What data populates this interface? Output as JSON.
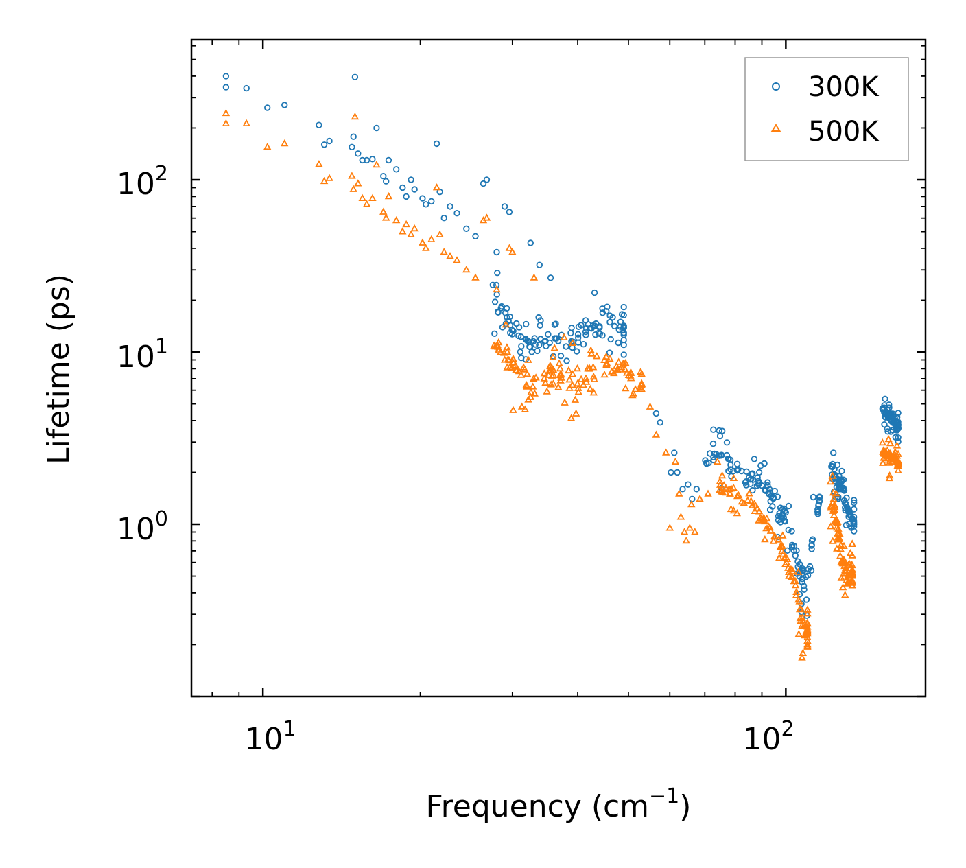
{
  "chart_data": {
    "type": "scatter",
    "xscale": "log",
    "yscale": "log",
    "xlim": [
      7.3,
      185
    ],
    "ylim": [
      0.1,
      650
    ],
    "xlabel_text": "Frequency (cm",
    "xlabel_sup": "−1",
    "xlabel_close": ")",
    "ylabel": "Lifetime (ps)",
    "xticks": [
      {
        "value": 10,
        "base": "10",
        "exp": "1"
      },
      {
        "value": 100,
        "base": "10",
        "exp": "2"
      }
    ],
    "yticks": [
      {
        "value": 1,
        "base": "10",
        "exp": "0"
      },
      {
        "value": 10,
        "base": "10",
        "exp": "1"
      },
      {
        "value": 100,
        "base": "10",
        "exp": "2"
      }
    ],
    "legend_position": "top-right",
    "series": [
      {
        "name": "300K",
        "marker": "circle",
        "color": "#1f77b4",
        "segments": [
          [
            [
              8.5,
              400
            ],
            [
              8.5,
              345
            ],
            [
              9.3,
              340
            ],
            [
              10.2,
              262
            ],
            [
              11.0,
              272
            ],
            [
              12.8,
              208
            ],
            [
              13.1,
              160
            ],
            [
              13.4,
              168
            ],
            [
              14.8,
              155
            ],
            [
              14.9,
              178
            ],
            [
              15.0,
              395
            ],
            [
              15.2,
              142
            ],
            [
              15.5,
              130
            ],
            [
              15.8,
              130
            ],
            [
              16.2,
              132
            ],
            [
              16.5,
              200
            ],
            [
              17.0,
              105
            ],
            [
              17.2,
              98
            ],
            [
              17.4,
              130
            ],
            [
              18.0,
              115
            ],
            [
              18.5,
              90
            ],
            [
              18.8,
              80
            ],
            [
              19.2,
              100
            ],
            [
              19.5,
              88
            ],
            [
              20.2,
              78
            ],
            [
              20.5,
              72
            ],
            [
              21.0,
              75
            ],
            [
              21.5,
              162
            ],
            [
              21.8,
              85
            ],
            [
              22.2,
              60
            ],
            [
              22.8,
              70
            ],
            [
              23.5,
              64
            ],
            [
              24.5,
              52
            ],
            [
              25.5,
              47
            ],
            [
              26.4,
              95
            ],
            [
              26.8,
              100
            ],
            [
              28.0,
              38
            ],
            [
              29.0,
              70
            ],
            [
              29.6,
              65
            ],
            [
              32.5,
              43
            ],
            [
              33.8,
              32
            ],
            [
              35.5,
              27
            ]
          ],
          [
            [
              27.5,
              22,
              37,
              12,
              22
            ],
            [
              30.2,
              13,
              22,
              8,
              18
            ],
            [
              33.0,
              11,
              21,
              6,
              14
            ],
            [
              36.0,
              12,
              18,
              6,
              14
            ],
            [
              39.0,
              12,
              18,
              7,
              14
            ],
            [
              42.0,
              14,
              23,
              9,
              16
            ],
            [
              45.5,
              12,
              27,
              9,
              13
            ],
            [
              49.0,
              11,
              20,
              8,
              12
            ]
          ],
          [
            [
              56.5,
              4.4
            ],
            [
              57.5,
              3.9
            ],
            [
              61.2,
              2.6
            ],
            [
              60.3,
              2.0
            ],
            [
              62.0,
              2.0
            ],
            [
              63.5,
              1.6
            ],
            [
              65.0,
              1.7
            ],
            [
              66.2,
              1.4
            ],
            [
              67.5,
              1.6
            ]
          ],
          [
            [
              70.0,
              2.5,
              4.0,
              1.5,
              15
            ],
            [
              75.0,
              2.5,
              3.9,
              1.6,
              14
            ],
            [
              80.0,
              2.3,
              2.7,
              1.6,
              12
            ],
            [
              86.0,
              2.0,
              2.5,
              1.4,
              14
            ],
            [
              91.0,
              1.6,
              2.3,
              1.1,
              14
            ],
            [
              95.0,
              1.3,
              2.2,
              0.9,
              12
            ],
            [
              99.0,
              1.1,
              1.8,
              0.7,
              12
            ],
            [
              103.0,
              0.8,
              1.1,
              0.55,
              12
            ],
            [
              107.0,
              0.55,
              0.75,
              0.3,
              12
            ],
            [
              110.0,
              0.5,
              0.8,
              0.28,
              10
            ],
            [
              113.0,
              0.9,
              1.5,
              0.6,
              8
            ],
            [
              116.0,
              1.4,
              1.5,
              1.2,
              4
            ]
          ],
          [
            [
              122.0,
              2.2,
              3.3,
              1.2,
              20
            ],
            [
              125.5,
              2.0,
              3.1,
              1.0,
              18
            ],
            [
              128.5,
              1.7,
              2.6,
              0.9,
              16
            ],
            [
              131.5,
              1.2,
              1.7,
              0.8,
              12
            ],
            [
              135.0,
              1.0,
              1.4,
              0.7,
              10
            ]
          ],
          [
            [
              153.0,
              4.6,
              5.8,
              3.8,
              22
            ],
            [
              157.0,
              4.3,
              5.4,
              3.4,
              20
            ],
            [
              161.0,
              3.9,
              5.0,
              3.2,
              18
            ],
            [
              164.0,
              3.6,
              4.6,
              3.0,
              12
            ]
          ]
        ]
      },
      {
        "name": "500K",
        "marker": "triangle",
        "color": "#ff7f0e",
        "segments": [
          [
            [
              8.5,
              243
            ],
            [
              8.5,
              212
            ],
            [
              9.3,
              212
            ],
            [
              10.2,
              155
            ],
            [
              11.0,
              162
            ],
            [
              12.8,
              123
            ],
            [
              13.1,
              98
            ],
            [
              13.4,
              102
            ],
            [
              14.8,
              105
            ],
            [
              14.9,
              88
            ],
            [
              15.0,
              232
            ],
            [
              15.2,
              95
            ],
            [
              15.5,
              78
            ],
            [
              15.8,
              72
            ],
            [
              16.2,
              78
            ],
            [
              16.5,
              122
            ],
            [
              17.0,
              65
            ],
            [
              17.2,
              60
            ],
            [
              17.4,
              80
            ],
            [
              18.0,
              58
            ],
            [
              18.5,
              50
            ],
            [
              18.8,
              55
            ],
            [
              19.2,
              48
            ],
            [
              19.5,
              52
            ],
            [
              20.2,
              43
            ],
            [
              20.5,
              40
            ],
            [
              21.0,
              45
            ],
            [
              21.5,
              90
            ],
            [
              21.8,
              48
            ],
            [
              22.2,
              38
            ],
            [
              22.8,
              36
            ],
            [
              23.5,
              34
            ],
            [
              24.5,
              30
            ],
            [
              25.5,
              27
            ],
            [
              26.4,
              58
            ],
            [
              26.8,
              60
            ],
            [
              28.0,
              23
            ],
            [
              29.6,
              40
            ],
            [
              30.0,
              38
            ],
            [
              33.0,
              27
            ]
          ],
          [
            [
              27.5,
              11,
              22,
              6,
              22
            ],
            [
              30.2,
              9,
              14,
              4.5,
              18
            ],
            [
              33.0,
              7,
              12,
              2.8,
              18
            ],
            [
              36.0,
              8,
              13,
              4,
              14
            ],
            [
              39.0,
              8,
              12,
              3.5,
              14
            ],
            [
              42.0,
              8,
              12,
              3,
              16
            ],
            [
              45.5,
              9,
              12,
              6,
              12
            ],
            [
              49.0,
              8,
              11,
              6,
              14
            ],
            [
              53.0,
              6.5,
              8,
              5,
              8
            ]
          ],
          [
            [
              55.0,
              4.8
            ],
            [
              56.5,
              3.3
            ],
            [
              59.0,
              2.6
            ],
            [
              61.5,
              2.3
            ],
            [
              62.5,
              1.5
            ],
            [
              60.0,
              0.95
            ],
            [
              63.0,
              1.1
            ],
            [
              64.0,
              0.9
            ],
            [
              64.5,
              0.8
            ],
            [
              65.5,
              0.95
            ],
            [
              67.0,
              0.9
            ],
            [
              66.0,
              1.3
            ],
            [
              68.5,
              1.4
            ],
            [
              71.0,
              1.5
            ]
          ],
          [
            [
              72.0,
              1.6,
              2.6,
              1.3,
              12
            ],
            [
              78.0,
              1.5,
              2.0,
              1.2,
              12
            ],
            [
              84.0,
              1.4,
              1.7,
              1.1,
              12
            ],
            [
              90.0,
              1.1,
              1.5,
              0.8,
              12
            ],
            [
              95.0,
              0.9,
              1.3,
              0.6,
              12
            ],
            [
              100.0,
              0.6,
              0.9,
              0.45,
              12
            ],
            [
              104.0,
              0.45,
              0.65,
              0.3,
              12
            ],
            [
              107.0,
              0.3,
              0.5,
              0.17,
              12
            ],
            [
              110.0,
              0.22,
              0.35,
              0.15,
              14
            ]
          ],
          [
            [
              121.5,
              1.5,
              2.4,
              0.9,
              20
            ],
            [
              125.0,
              1.1,
              1.8,
              0.6,
              18
            ],
            [
              128.0,
              0.7,
              1.0,
              0.4,
              18
            ],
            [
              131.0,
              0.5,
              0.8,
              0.3,
              18
            ],
            [
              134.0,
              0.5,
              0.8,
              0.3,
              16
            ]
          ],
          [
            [
              153.0,
              2.7,
              3.6,
              2.1,
              22
            ],
            [
              157.0,
              2.5,
              3.2,
              1.8,
              20
            ],
            [
              161.0,
              2.4,
              3.0,
              2.0,
              18
            ],
            [
              164.0,
              2.3,
              2.8,
              1.9,
              12
            ]
          ]
        ]
      }
    ]
  }
}
